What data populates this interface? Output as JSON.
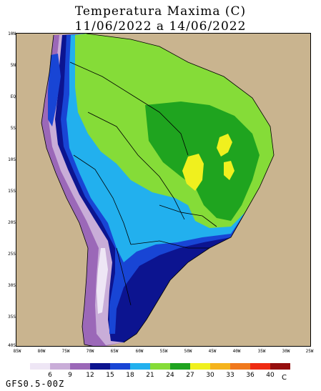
{
  "title": "Temperatura Maxima (C)",
  "subtitle": "11/06/2022 a 14/06/2022",
  "lat_labels": [
    "10N",
    "5N",
    "EQ",
    "5S",
    "10S",
    "15S",
    "20S",
    "25S",
    "30S",
    "35S",
    "40S"
  ],
  "lon_labels": [
    "85W",
    "80W",
    "75W",
    "70W",
    "65W",
    "60W",
    "55W",
    "50W",
    "45W",
    "40W",
    "35W",
    "30W",
    "25W"
  ],
  "legend": {
    "colors": [
      "#eee6f5",
      "#c9add8",
      "#9b68b8",
      "#0c1490",
      "#1845d5",
      "#22b0ee",
      "#85dc38",
      "#1fa41f",
      "#f0f01e",
      "#f5b31c",
      "#f0781c",
      "#ee2b12",
      "#950e0e"
    ],
    "labels": [
      "6",
      "9",
      "12",
      "15",
      "18",
      "21",
      "24",
      "27",
      "30",
      "33",
      "36",
      "40"
    ],
    "unit": "C"
  },
  "colors": {
    "land_background": "#c9b48f",
    "ocean_background": "#c9b48f"
  },
  "model_label": "GFS0.5-00Z"
}
